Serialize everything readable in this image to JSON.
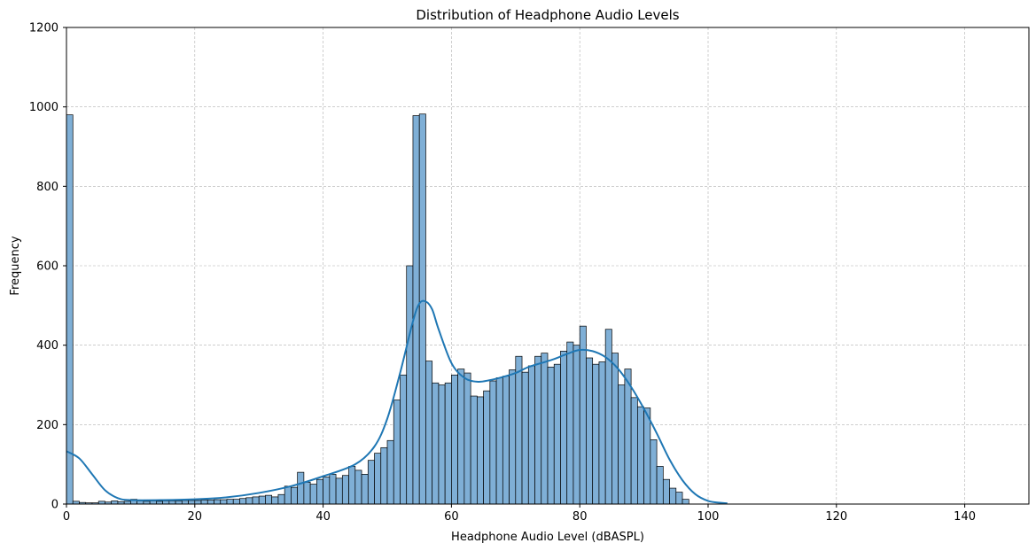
{
  "chart_data": {
    "type": "bar",
    "title": "Distribution of Headphone Audio Levels",
    "xlabel": "Headphone Audio Level (dBASPL)",
    "ylabel": "Frequency",
    "xlim": [
      0,
      150
    ],
    "ylim": [
      0,
      1200
    ],
    "xticks": [
      0,
      20,
      40,
      60,
      80,
      100,
      120,
      140
    ],
    "yticks": [
      0,
      200,
      400,
      600,
      800,
      1000,
      1200
    ],
    "grid": true,
    "bin_width": 1,
    "bar_color": "#7fafd6",
    "edge_color": "#000000",
    "kde_color": "#1f77b4",
    "histogram": {
      "bin_start": 0,
      "counts": [
        980,
        7,
        4,
        3,
        3,
        7,
        5,
        8,
        6,
        7,
        12,
        8,
        7,
        8,
        7,
        8,
        8,
        8,
        9,
        9,
        9,
        10,
        10,
        11,
        11,
        12,
        12,
        14,
        16,
        18,
        20,
        22,
        18,
        24,
        45,
        42,
        80,
        55,
        50,
        62,
        68,
        75,
        65,
        72,
        95,
        85,
        75,
        110,
        128,
        142,
        160,
        262,
        325,
        600,
        978,
        982,
        360,
        305,
        300,
        305,
        325,
        340,
        330,
        272,
        270,
        285,
        310,
        318,
        322,
        338,
        372,
        332,
        348,
        372,
        380,
        345,
        352,
        385,
        408,
        400,
        448,
        368,
        352,
        358,
        440,
        380,
        300,
        340,
        268,
        245,
        242,
        162,
        95,
        62,
        40,
        30,
        12
      ]
    },
    "kde": {
      "x": [
        0,
        2,
        4,
        6,
        8,
        10,
        15,
        20,
        25,
        30,
        35,
        40,
        45,
        48,
        50,
        52,
        54,
        55,
        56,
        57,
        58,
        60,
        62,
        64,
        66,
        68,
        70,
        72,
        74,
        76,
        78,
        80,
        82,
        84,
        86,
        88,
        90,
        92,
        94,
        96,
        98,
        100,
        102,
        103
      ],
      "y": [
        133,
        115,
        75,
        35,
        15,
        10,
        10,
        12,
        17,
        28,
        45,
        70,
        100,
        145,
        215,
        330,
        460,
        505,
        510,
        490,
        440,
        355,
        318,
        308,
        312,
        320,
        330,
        345,
        355,
        365,
        378,
        388,
        385,
        370,
        340,
        295,
        240,
        178,
        112,
        60,
        25,
        8,
        3,
        2
      ]
    }
  }
}
